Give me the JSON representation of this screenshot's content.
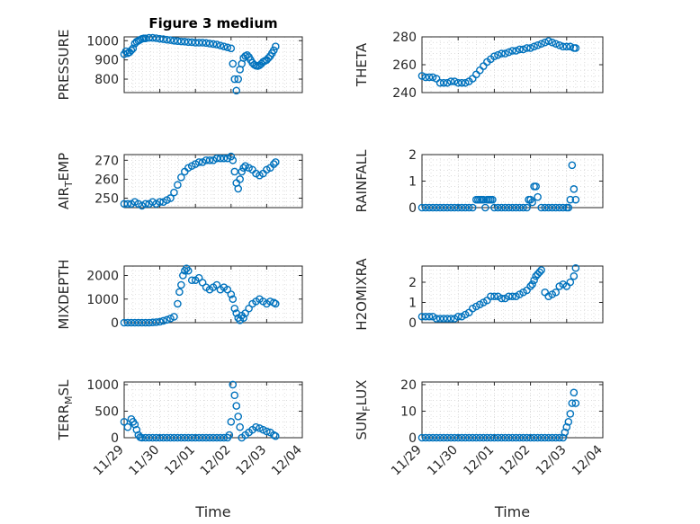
{
  "figure_title": "Figure 3 medium",
  "colors": {
    "marker": "#0072BD",
    "axes": "#262626",
    "grid": "#c8c8c8"
  },
  "chart_data": [
    {
      "type": "scatter",
      "title": "Figure 3 medium",
      "ylabel": "PRESSURE",
      "xlabel": "",
      "xlim": [
        "11/29",
        "12/04"
      ],
      "ylim": [
        730,
        1020
      ],
      "yticks": [
        800,
        900,
        1000
      ],
      "x_tick_labels": [],
      "grid": true,
      "series": [
        {
          "x": [
            0.0,
            0.05,
            0.1,
            0.15,
            0.2,
            0.25,
            0.3,
            0.35,
            0.4,
            0.45,
            0.5,
            0.55,
            0.6,
            0.7,
            0.8,
            0.9,
            1.0,
            1.1,
            1.2,
            1.3,
            1.4,
            1.5,
            1.6,
            1.7,
            1.8,
            1.9,
            2.0,
            2.1,
            2.2,
            2.3,
            2.4,
            2.5,
            2.6,
            2.7,
            2.8,
            2.9,
            3.0,
            3.05,
            3.1,
            3.15,
            3.2,
            3.25,
            3.3,
            3.35,
            3.4,
            3.45,
            3.5,
            3.55,
            3.6,
            3.65,
            3.7,
            3.75,
            3.8,
            3.85,
            3.9,
            3.95,
            4.0,
            4.05,
            4.1,
            4.15,
            4.2,
            4.25
          ],
          "y": [
            930,
            945,
            935,
            940,
            950,
            960,
            985,
            995,
            1000,
            1005,
            1010,
            1012,
            1012,
            1015,
            1015,
            1013,
            1010,
            1008,
            1005,
            1003,
            1000,
            998,
            996,
            995,
            993,
            992,
            990,
            990,
            990,
            988,
            985,
            983,
            980,
            975,
            970,
            965,
            960,
            880,
            800,
            740,
            800,
            850,
            880,
            910,
            920,
            925,
            915,
            900,
            885,
            875,
            870,
            868,
            872,
            880,
            890,
            895,
            900,
            910,
            920,
            935,
            950,
            970
          ]
        }
      ]
    },
    {
      "type": "scatter",
      "ylabel": "THETA",
      "xlabel": "",
      "xlim": [
        "11/29",
        "12/04"
      ],
      "ylim": [
        240,
        280
      ],
      "yticks": [
        240,
        260,
        280
      ],
      "x_tick_labels": [],
      "grid": true,
      "series": [
        {
          "x": [
            0.0,
            0.1,
            0.2,
            0.3,
            0.4,
            0.5,
            0.6,
            0.7,
            0.8,
            0.9,
            1.0,
            1.1,
            1.2,
            1.3,
            1.4,
            1.5,
            1.6,
            1.7,
            1.8,
            1.9,
            2.0,
            2.1,
            2.2,
            2.3,
            2.4,
            2.5,
            2.6,
            2.7,
            2.8,
            2.9,
            3.0,
            3.1,
            3.2,
            3.3,
            3.4,
            3.5,
            3.6,
            3.7,
            3.8,
            3.9,
            4.0,
            4.1,
            4.2,
            4.25
          ],
          "y": [
            252,
            251,
            251,
            251,
            250,
            247,
            247,
            247,
            248,
            248,
            247,
            247,
            247,
            248,
            250,
            253,
            256,
            259,
            262,
            264,
            266,
            267,
            268,
            268,
            269,
            270,
            270,
            271,
            271,
            272,
            272,
            273,
            274,
            275,
            276,
            277,
            276,
            275,
            274,
            273,
            273,
            273,
            272,
            272
          ]
        }
      ]
    },
    {
      "type": "scatter",
      "ylabel": "AIR_TEMP",
      "xlabel": "",
      "xlim": [
        "11/29",
        "12/04"
      ],
      "ylim": [
        245,
        273
      ],
      "yticks": [
        250,
        260,
        270
      ],
      "x_tick_labels": [],
      "grid": true,
      "series": [
        {
          "x": [
            0.0,
            0.1,
            0.2,
            0.3,
            0.4,
            0.5,
            0.6,
            0.7,
            0.8,
            0.9,
            1.0,
            1.1,
            1.2,
            1.3,
            1.4,
            1.5,
            1.6,
            1.7,
            1.8,
            1.9,
            2.0,
            2.1,
            2.2,
            2.3,
            2.4,
            2.5,
            2.6,
            2.7,
            2.8,
            2.9,
            3.0,
            3.05,
            3.1,
            3.15,
            3.2,
            3.25,
            3.3,
            3.35,
            3.4,
            3.5,
            3.6,
            3.7,
            3.8,
            3.9,
            4.0,
            4.1,
            4.2,
            4.25
          ],
          "y": [
            247,
            247,
            247,
            248,
            247,
            246,
            247,
            247,
            248,
            247,
            248,
            248,
            249,
            250,
            253,
            257,
            261,
            264,
            266,
            267,
            268,
            269,
            269,
            270,
            270,
            270,
            271,
            271,
            271,
            271,
            272,
            270,
            264,
            258,
            255,
            260,
            264,
            266,
            267,
            266,
            265,
            263,
            262,
            263,
            265,
            266,
            268,
            269
          ]
        }
      ]
    },
    {
      "type": "scatter",
      "ylabel": "RAINFALL",
      "xlabel": "",
      "xlim": [
        "11/29",
        "12/04"
      ],
      "ylim": [
        0,
        2
      ],
      "yticks": [
        0,
        1,
        2
      ],
      "x_tick_labels": [],
      "grid": true,
      "series": [
        {
          "x": [
            0.0,
            0.1,
            0.2,
            0.3,
            0.4,
            0.5,
            0.6,
            0.7,
            0.8,
            0.9,
            1.0,
            1.1,
            1.2,
            1.3,
            1.4,
            1.5,
            1.55,
            1.6,
            1.65,
            1.7,
            1.75,
            1.8,
            1.85,
            1.9,
            1.95,
            2.0,
            2.1,
            2.2,
            2.3,
            2.4,
            2.5,
            2.6,
            2.7,
            2.8,
            2.9,
            2.95,
            3.0,
            3.05,
            3.1,
            3.15,
            3.2,
            3.3,
            3.4,
            3.5,
            3.6,
            3.7,
            3.8,
            3.9,
            4.0,
            4.05,
            4.1,
            4.15,
            4.2,
            4.25
          ],
          "y": [
            0,
            0,
            0,
            0,
            0,
            0,
            0,
            0,
            0,
            0,
            0,
            0,
            0,
            0,
            0,
            0.3,
            0.3,
            0.3,
            0.3,
            0.3,
            0,
            0.3,
            0.3,
            0.3,
            0.3,
            0,
            0,
            0,
            0,
            0,
            0,
            0,
            0,
            0,
            0,
            0.3,
            0.3,
            0.2,
            0.8,
            0.8,
            0.4,
            0,
            0,
            0,
            0,
            0,
            0,
            0,
            0,
            0,
            0.3,
            1.6,
            0.7,
            0.3
          ]
        }
      ]
    },
    {
      "type": "scatter",
      "ylabel": "MIXDEPTH",
      "xlabel": "",
      "xlim": [
        "11/29",
        "12/04"
      ],
      "ylim": [
        0,
        2400
      ],
      "yticks": [
        0,
        1000,
        2000
      ],
      "x_tick_labels": [],
      "grid": true,
      "series": [
        {
          "x": [
            0.0,
            0.1,
            0.2,
            0.3,
            0.4,
            0.5,
            0.6,
            0.7,
            0.8,
            0.9,
            1.0,
            1.1,
            1.2,
            1.3,
            1.4,
            1.5,
            1.55,
            1.6,
            1.65,
            1.7,
            1.75,
            1.8,
            1.9,
            2.0,
            2.1,
            2.2,
            2.3,
            2.4,
            2.5,
            2.6,
            2.7,
            2.8,
            2.9,
            3.0,
            3.05,
            3.1,
            3.15,
            3.2,
            3.25,
            3.3,
            3.35,
            3.4,
            3.5,
            3.6,
            3.7,
            3.8,
            3.9,
            4.0,
            4.1,
            4.2,
            4.25
          ],
          "y": [
            0,
            0,
            0,
            0,
            0,
            0,
            0,
            0,
            10,
            20,
            40,
            80,
            120,
            180,
            250,
            800,
            1300,
            1600,
            2000,
            2200,
            2300,
            2200,
            1800,
            1800,
            1900,
            1700,
            1500,
            1400,
            1500,
            1600,
            1400,
            1500,
            1400,
            1200,
            1000,
            600,
            400,
            200,
            100,
            300,
            200,
            400,
            600,
            800,
            900,
            1000,
            900,
            800,
            900,
            850,
            800
          ]
        }
      ]
    },
    {
      "type": "scatter",
      "ylabel": "H2OMIXRA",
      "xlabel": "",
      "xlim": [
        "11/29",
        "12/04"
      ],
      "ylim": [
        0,
        2.8
      ],
      "yticks": [
        0,
        1,
        2
      ],
      "x_tick_labels": [],
      "grid": true,
      "series": [
        {
          "x": [
            0.0,
            0.1,
            0.2,
            0.3,
            0.4,
            0.5,
            0.6,
            0.7,
            0.8,
            0.9,
            1.0,
            1.1,
            1.2,
            1.3,
            1.4,
            1.5,
            1.6,
            1.7,
            1.8,
            1.9,
            2.0,
            2.1,
            2.2,
            2.3,
            2.4,
            2.5,
            2.6,
            2.7,
            2.8,
            2.9,
            3.0,
            3.05,
            3.1,
            3.15,
            3.2,
            3.25,
            3.3,
            3.4,
            3.5,
            3.6,
            3.7,
            3.8,
            3.9,
            4.0,
            4.1,
            4.2,
            4.25
          ],
          "y": [
            0.3,
            0.3,
            0.3,
            0.3,
            0.2,
            0.2,
            0.2,
            0.2,
            0.2,
            0.2,
            0.3,
            0.3,
            0.4,
            0.5,
            0.7,
            0.8,
            0.9,
            1.0,
            1.1,
            1.3,
            1.3,
            1.3,
            1.2,
            1.2,
            1.3,
            1.3,
            1.3,
            1.4,
            1.5,
            1.6,
            1.8,
            1.9,
            2.1,
            2.3,
            2.4,
            2.5,
            2.6,
            1.5,
            1.3,
            1.4,
            1.5,
            1.8,
            1.9,
            1.8,
            2.0,
            2.3,
            2.7
          ]
        }
      ]
    },
    {
      "type": "scatter",
      "ylabel": "TERR_MSL",
      "xlabel": "Time",
      "xlim": [
        "11/29",
        "12/04"
      ],
      "ylim": [
        0,
        1050
      ],
      "yticks": [
        0,
        500,
        1000
      ],
      "x_tick_labels": [
        "11/29",
        "11/30",
        "12/01",
        "12/02",
        "12/03",
        "12/04"
      ],
      "grid": true,
      "series": [
        {
          "x": [
            0.0,
            0.1,
            0.2,
            0.25,
            0.3,
            0.35,
            0.4,
            0.45,
            0.5,
            0.6,
            0.7,
            0.8,
            0.9,
            1.0,
            1.1,
            1.2,
            1.3,
            1.4,
            1.5,
            1.6,
            1.7,
            1.8,
            1.9,
            2.0,
            2.1,
            2.2,
            2.3,
            2.4,
            2.5,
            2.6,
            2.7,
            2.8,
            2.9,
            2.95,
            3.0,
            3.05,
            3.1,
            3.15,
            3.2,
            3.25,
            3.3,
            3.4,
            3.5,
            3.6,
            3.7,
            3.8,
            3.9,
            4.0,
            4.1,
            4.2,
            4.25
          ],
          "y": [
            300,
            200,
            350,
            300,
            250,
            150,
            50,
            10,
            0,
            0,
            0,
            0,
            0,
            0,
            0,
            0,
            0,
            0,
            0,
            0,
            0,
            0,
            0,
            0,
            0,
            0,
            0,
            0,
            0,
            0,
            0,
            0,
            0,
            50,
            300,
            1000,
            800,
            600,
            400,
            200,
            0,
            50,
            100,
            150,
            200,
            180,
            150,
            120,
            100,
            50,
            30
          ]
        }
      ]
    },
    {
      "type": "scatter",
      "ylabel": "SUN_FLUX",
      "xlabel": "Time",
      "xlim": [
        "11/29",
        "12/04"
      ],
      "ylim": [
        0,
        21
      ],
      "yticks": [
        0,
        10,
        20
      ],
      "x_tick_labels": [
        "11/29",
        "11/30",
        "12/01",
        "12/02",
        "12/03",
        "12/04"
      ],
      "grid": true,
      "series": [
        {
          "x": [
            0.0,
            0.1,
            0.2,
            0.3,
            0.4,
            0.5,
            0.6,
            0.7,
            0.8,
            0.9,
            1.0,
            1.1,
            1.2,
            1.3,
            1.4,
            1.5,
            1.6,
            1.7,
            1.8,
            1.9,
            2.0,
            2.1,
            2.2,
            2.3,
            2.4,
            2.5,
            2.6,
            2.7,
            2.8,
            2.9,
            3.0,
            3.1,
            3.2,
            3.3,
            3.4,
            3.5,
            3.6,
            3.7,
            3.8,
            3.9,
            3.95,
            4.0,
            4.05,
            4.1,
            4.15,
            4.2,
            4.25
          ],
          "y": [
            0,
            0,
            0,
            0,
            0,
            0,
            0,
            0,
            0,
            0,
            0,
            0,
            0,
            0,
            0,
            0,
            0,
            0,
            0,
            0,
            0,
            0,
            0,
            0,
            0,
            0,
            0,
            0,
            0,
            0,
            0,
            0,
            0,
            0,
            0,
            0,
            0,
            0,
            0,
            0,
            2,
            4,
            6,
            9,
            13,
            17,
            13
          ]
        }
      ]
    }
  ]
}
